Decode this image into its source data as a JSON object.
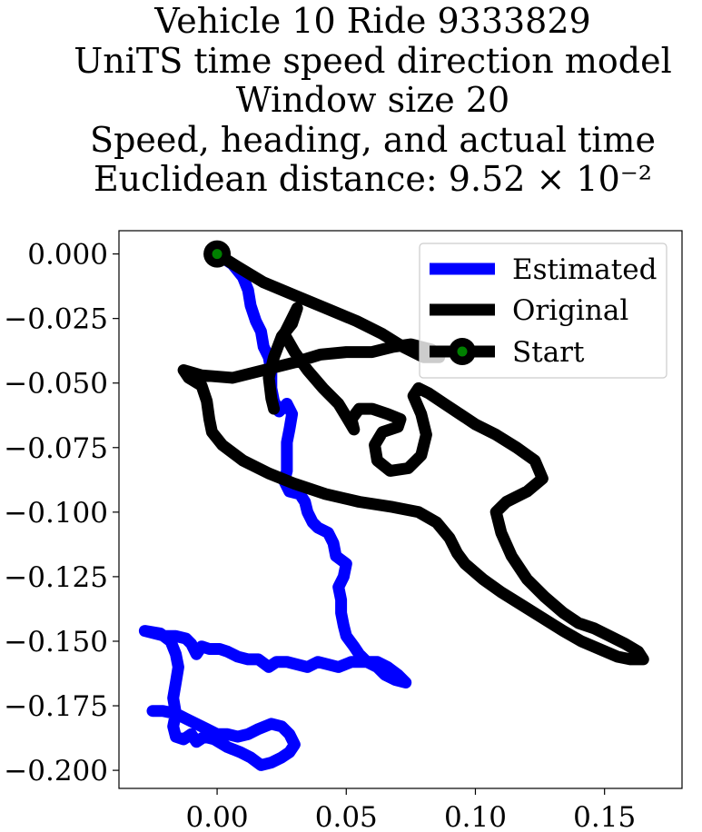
{
  "chart_data": {
    "type": "line",
    "title_lines": [
      "Vehicle 10 Ride 9333829",
      "UniTS time speed direction model",
      "Window size 20",
      "Speed, heading, and actual time",
      "Euclidean distance: 9.52 × 10⁻²"
    ],
    "xlabel": "",
    "ylabel": "",
    "xlim": [
      -0.038,
      0.18
    ],
    "ylim": [
      -0.207,
      0.009
    ],
    "xticks": [
      0.0,
      0.05,
      0.1,
      0.15
    ],
    "xtick_labels": [
      "0.00",
      "0.05",
      "0.10",
      "0.15"
    ],
    "yticks": [
      0.0,
      -0.025,
      -0.05,
      -0.075,
      -0.1,
      -0.125,
      -0.15,
      -0.175,
      -0.2
    ],
    "ytick_labels": [
      "0.000",
      "−0.025",
      "−0.050",
      "−0.075",
      "−0.100",
      "−0.125",
      "−0.150",
      "−0.175",
      "−0.200"
    ],
    "grid": false,
    "legend_position": "top-right",
    "legend": [
      "Estimated",
      "Original",
      "Start"
    ],
    "series": [
      {
        "name": "Estimated",
        "color": "#0000ff",
        "points": [
          [
            0.0,
            0.0
          ],
          [
            0.006,
            -0.004
          ],
          [
            0.01,
            -0.009
          ],
          [
            0.012,
            -0.014
          ],
          [
            0.013,
            -0.02
          ],
          [
            0.015,
            -0.026
          ],
          [
            0.017,
            -0.03
          ],
          [
            0.018,
            -0.036
          ],
          [
            0.02,
            -0.04
          ],
          [
            0.021,
            -0.046
          ],
          [
            0.021,
            -0.052
          ],
          [
            0.022,
            -0.057
          ],
          [
            0.024,
            -0.061
          ],
          [
            0.027,
            -0.058
          ],
          [
            0.029,
            -0.062
          ],
          [
            0.028,
            -0.068
          ],
          [
            0.027,
            -0.073
          ],
          [
            0.027,
            -0.079
          ],
          [
            0.027,
            -0.084
          ],
          [
            0.026,
            -0.088
          ],
          [
            0.028,
            -0.092
          ],
          [
            0.032,
            -0.093
          ],
          [
            0.034,
            -0.096
          ],
          [
            0.035,
            -0.1
          ],
          [
            0.037,
            -0.104
          ],
          [
            0.039,
            -0.106
          ],
          [
            0.043,
            -0.108
          ],
          [
            0.045,
            -0.112
          ],
          [
            0.046,
            -0.117
          ],
          [
            0.05,
            -0.12
          ],
          [
            0.049,
            -0.125
          ],
          [
            0.047,
            -0.129
          ],
          [
            0.048,
            -0.134
          ],
          [
            0.048,
            -0.139
          ],
          [
            0.049,
            -0.144
          ],
          [
            0.05,
            -0.148
          ],
          [
            0.053,
            -0.152
          ],
          [
            0.055,
            -0.155
          ],
          [
            0.058,
            -0.158
          ],
          [
            0.062,
            -0.16
          ],
          [
            0.065,
            -0.163
          ],
          [
            0.069,
            -0.165
          ],
          [
            0.073,
            -0.166
          ],
          [
            0.07,
            -0.163
          ],
          [
            0.066,
            -0.16
          ],
          [
            0.062,
            -0.158
          ],
          [
            0.057,
            -0.158
          ],
          [
            0.052,
            -0.158
          ],
          [
            0.047,
            -0.16
          ],
          [
            0.043,
            -0.159
          ],
          [
            0.039,
            -0.158
          ],
          [
            0.035,
            -0.16
          ],
          [
            0.031,
            -0.159
          ],
          [
            0.027,
            -0.158
          ],
          [
            0.023,
            -0.158
          ],
          [
            0.02,
            -0.16
          ],
          [
            0.016,
            -0.157
          ],
          [
            0.012,
            -0.157
          ],
          [
            0.008,
            -0.156
          ],
          [
            0.004,
            -0.154
          ],
          [
            0.001,
            -0.153
          ],
          [
            -0.003,
            -0.153
          ],
          [
            -0.006,
            -0.152
          ],
          [
            -0.008,
            -0.155
          ],
          [
            -0.01,
            -0.151
          ],
          [
            -0.012,
            -0.149
          ],
          [
            -0.016,
            -0.148
          ],
          [
            -0.02,
            -0.148
          ],
          [
            -0.024,
            -0.147
          ],
          [
            -0.028,
            -0.146
          ],
          [
            -0.022,
            -0.147
          ],
          [
            -0.018,
            -0.15
          ],
          [
            -0.016,
            -0.155
          ],
          [
            -0.015,
            -0.16
          ],
          [
            -0.016,
            -0.166
          ],
          [
            -0.017,
            -0.172
          ],
          [
            -0.016,
            -0.178
          ],
          [
            -0.017,
            -0.183
          ],
          [
            -0.016,
            -0.187
          ],
          [
            -0.013,
            -0.188
          ],
          [
            -0.01,
            -0.186
          ],
          [
            -0.008,
            -0.189
          ],
          [
            -0.005,
            -0.187
          ],
          [
            -0.001,
            -0.188
          ],
          [
            0.004,
            -0.191
          ],
          [
            0.009,
            -0.193
          ],
          [
            0.013,
            -0.195
          ],
          [
            0.017,
            -0.198
          ],
          [
            0.021,
            -0.197
          ],
          [
            0.025,
            -0.195
          ],
          [
            0.028,
            -0.193
          ],
          [
            0.03,
            -0.19
          ],
          [
            0.028,
            -0.186
          ],
          [
            0.025,
            -0.183
          ],
          [
            0.021,
            -0.182
          ],
          [
            0.016,
            -0.184
          ],
          [
            0.012,
            -0.186
          ],
          [
            0.008,
            -0.187
          ],
          [
            0.004,
            -0.186
          ],
          [
            0.0,
            -0.186
          ],
          [
            -0.004,
            -0.184
          ],
          [
            -0.008,
            -0.182
          ],
          [
            -0.012,
            -0.18
          ],
          [
            -0.016,
            -0.178
          ],
          [
            -0.021,
            -0.177
          ],
          [
            -0.025,
            -0.177
          ]
        ]
      },
      {
        "name": "Original",
        "color": "#000000",
        "points": [
          [
            0.0,
            0.0
          ],
          [
            0.008,
            -0.005
          ],
          [
            0.018,
            -0.011
          ],
          [
            0.03,
            -0.016
          ],
          [
            0.042,
            -0.021
          ],
          [
            0.054,
            -0.026
          ],
          [
            0.064,
            -0.031
          ],
          [
            0.072,
            -0.036
          ],
          [
            0.08,
            -0.04
          ],
          [
            0.086,
            -0.04
          ],
          [
            0.083,
            -0.037
          ],
          [
            0.075,
            -0.035
          ],
          [
            0.068,
            -0.036
          ],
          [
            0.06,
            -0.038
          ],
          [
            0.05,
            -0.038
          ],
          [
            0.04,
            -0.039
          ],
          [
            0.03,
            -0.042
          ],
          [
            0.018,
            -0.045
          ],
          [
            0.006,
            -0.048
          ],
          [
            -0.006,
            -0.047
          ],
          [
            -0.013,
            -0.045
          ],
          [
            -0.011,
            -0.048
          ],
          [
            -0.006,
            -0.051
          ],
          [
            -0.004,
            -0.057
          ],
          [
            -0.003,
            -0.064
          ],
          [
            -0.002,
            -0.069
          ],
          [
            0.002,
            -0.074
          ],
          [
            0.01,
            -0.08
          ],
          [
            0.02,
            -0.085
          ],
          [
            0.03,
            -0.089
          ],
          [
            0.042,
            -0.093
          ],
          [
            0.055,
            -0.096
          ],
          [
            0.068,
            -0.098
          ],
          [
            0.078,
            -0.1
          ],
          [
            0.085,
            -0.104
          ],
          [
            0.09,
            -0.11
          ],
          [
            0.093,
            -0.116
          ],
          [
            0.096,
            -0.12
          ],
          [
            0.103,
            -0.126
          ],
          [
            0.11,
            -0.131
          ],
          [
            0.118,
            -0.136
          ],
          [
            0.126,
            -0.141
          ],
          [
            0.134,
            -0.146
          ],
          [
            0.141,
            -0.15
          ],
          [
            0.148,
            -0.153
          ],
          [
            0.155,
            -0.156
          ],
          [
            0.16,
            -0.157
          ],
          [
            0.165,
            -0.157
          ],
          [
            0.163,
            -0.154
          ],
          [
            0.158,
            -0.151
          ],
          [
            0.152,
            -0.148
          ],
          [
            0.146,
            -0.145
          ],
          [
            0.14,
            -0.143
          ],
          [
            0.134,
            -0.139
          ],
          [
            0.127,
            -0.133
          ],
          [
            0.12,
            -0.126
          ],
          [
            0.114,
            -0.117
          ],
          [
            0.11,
            -0.108
          ],
          [
            0.108,
            -0.1
          ],
          [
            0.112,
            -0.096
          ],
          [
            0.12,
            -0.092
          ],
          [
            0.126,
            -0.087
          ],
          [
            0.123,
            -0.08
          ],
          [
            0.116,
            -0.075
          ],
          [
            0.108,
            -0.07
          ],
          [
            0.1,
            -0.066
          ],
          [
            0.094,
            -0.062
          ],
          [
            0.088,
            -0.058
          ],
          [
            0.082,
            -0.054
          ],
          [
            0.078,
            -0.052
          ],
          [
            0.076,
            -0.055
          ],
          [
            0.079,
            -0.062
          ],
          [
            0.081,
            -0.07
          ],
          [
            0.079,
            -0.078
          ],
          [
            0.074,
            -0.083
          ],
          [
            0.067,
            -0.084
          ],
          [
            0.062,
            -0.08
          ],
          [
            0.061,
            -0.074
          ],
          [
            0.064,
            -0.069
          ],
          [
            0.07,
            -0.067
          ],
          [
            0.071,
            -0.064
          ],
          [
            0.066,
            -0.062
          ],
          [
            0.06,
            -0.06
          ],
          [
            0.055,
            -0.06
          ],
          [
            0.052,
            -0.064
          ],
          [
            0.053,
            -0.068
          ],
          [
            0.05,
            -0.063
          ],
          [
            0.047,
            -0.058
          ],
          [
            0.041,
            -0.052
          ],
          [
            0.035,
            -0.045
          ],
          [
            0.03,
            -0.038
          ],
          [
            0.026,
            -0.031
          ],
          [
            0.029,
            -0.025
          ],
          [
            0.031,
            -0.021
          ],
          [
            0.029,
            -0.027
          ],
          [
            0.025,
            -0.032
          ],
          [
            0.022,
            -0.04
          ],
          [
            0.02,
            -0.048
          ],
          [
            0.021,
            -0.056
          ],
          [
            0.022,
            -0.06
          ]
        ]
      }
    ],
    "start_point": [
      0.0,
      0.0
    ],
    "start_marker_color": "#008000"
  }
}
